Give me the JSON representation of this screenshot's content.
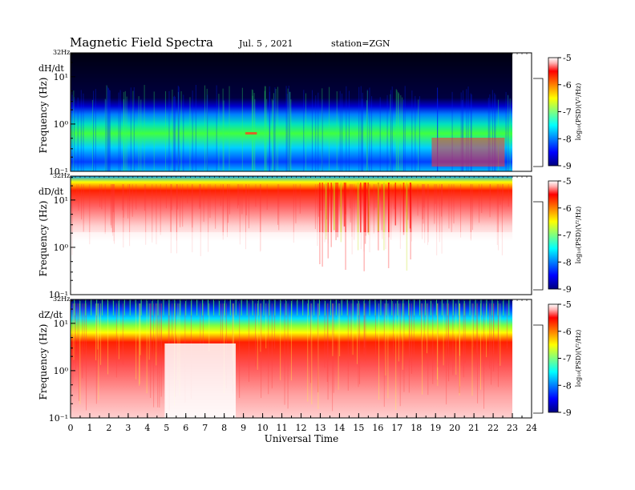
{
  "header": {
    "title": "Magnetic Field Spectra",
    "date": "Jul. 5 , 2021",
    "station": "station=ZGN"
  },
  "chart_data": {
    "type": "heatmap",
    "xlabel": "Universal Time",
    "x_ticks": [
      0,
      1,
      2,
      3,
      4,
      5,
      6,
      7,
      8,
      9,
      10,
      11,
      12,
      13,
      14,
      15,
      16,
      17,
      18,
      19,
      20,
      21,
      22,
      23,
      24
    ],
    "xlim": [
      0,
      24
    ],
    "panels": [
      {
        "component": "dH/dt",
        "ylabel": "Frequency (Hz)",
        "top_label": "32Hz",
        "y_ticks": [
          "10¹",
          "10⁰",
          "10⁻¹"
        ],
        "ylim_hz": [
          0.1,
          32
        ],
        "colorbar": {
          "label": "log₁₀(PSD)(V²/Hz)",
          "ticks": [
            -5,
            -6,
            -7,
            -8,
            -9
          ]
        }
      },
      {
        "component": "dD/dt",
        "ylabel": "Frequency (Hz)",
        "top_label": "32Hz",
        "y_ticks": [
          "10¹",
          "10⁰",
          "10⁻¹"
        ],
        "ylim_hz": [
          0.1,
          32
        ],
        "colorbar": {
          "label": "log₁₀(PSD)(V²/Hz)",
          "ticks": [
            -5,
            -6,
            -7,
            -8,
            -9
          ]
        }
      },
      {
        "component": "dZ/dt",
        "ylabel": "Frequency (Hz)",
        "top_label": "32Hz",
        "y_ticks": [
          "10¹",
          "10⁰",
          "10⁻¹"
        ],
        "ylim_hz": [
          0.1,
          32
        ],
        "colorbar": {
          "label": "log₁₀(PSD)(V²/Hz)",
          "ticks": [
            -5,
            -6,
            -7,
            -8,
            -9
          ]
        }
      }
    ]
  }
}
